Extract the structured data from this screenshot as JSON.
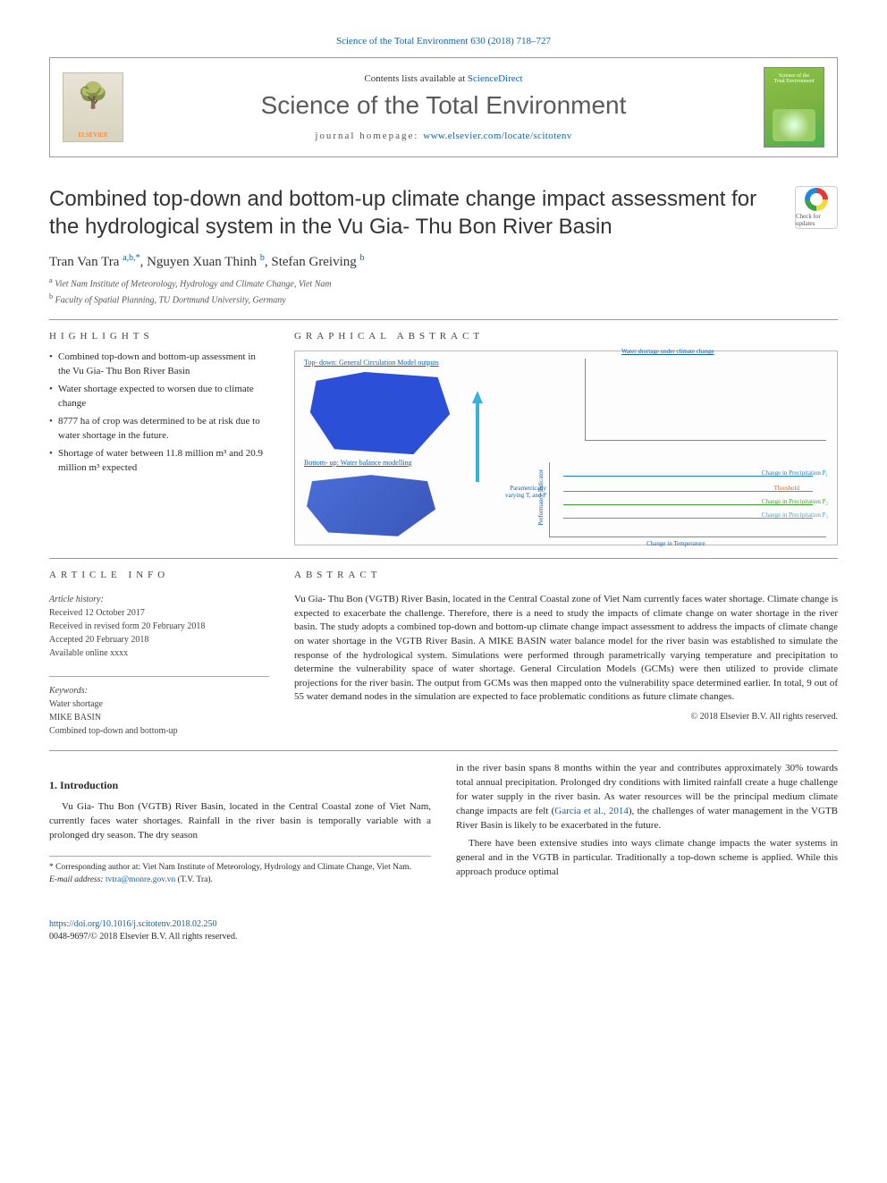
{
  "header": {
    "citation_line": "Science of the Total Environment 630 (2018) 718–727",
    "contents_prefix": "Contents lists available at ",
    "contents_link": "ScienceDirect",
    "journal_name": "Science of the Total Environment",
    "homepage_prefix": "journal homepage: ",
    "homepage_url": "www.elsevier.com/locate/scitotenv",
    "publisher_logo_label": "ELSEVIER",
    "cover_label_top": "Science of the",
    "cover_label_bottom": "Total Environment"
  },
  "article": {
    "title": "Combined top-down and bottom-up climate change impact assessment for the hydrological system in the Vu Gia- Thu Bon River Basin",
    "crossmark_label": "Check for updates",
    "authors_html": "Tran Van Tra <sup>a,b,*</sup>, Nguyen Xuan Thinh <sup>b</sup>, Stefan Greiving <sup>b</sup>",
    "affiliations": {
      "a": "a Viet Nam Institute of Meteorology, Hydrology and Climate Change, Viet Nam",
      "b": "b Faculty of Spatial Planning, TU Dortmund University, Germany"
    }
  },
  "highlights": {
    "header": "HIGHLIGHTS",
    "items": [
      "Combined top-down and bottom-up assessment in the Vu Gia- Thu Bon River Basin",
      "Water shortage expected to worsen due to climate change",
      "8777 ha of crop was determined to be at risk due to water shortage in the future.",
      "Shortage of water between 11.8 million m³ and 20.9 million m³ expected"
    ]
  },
  "graphical_abstract": {
    "header": "GRAPHICAL ABSTRACT",
    "top_down_label": "Top- down: General Circulation Model outputs",
    "right_top_label": "Water shortage under climate change",
    "bottom_up_label": "Bottom- up: Water balance modelling",
    "chart_labels": {
      "y_axis": "Performance Indicator",
      "x_axis": "Change in Temperature",
      "param_label": "Parametrically varying T, and P",
      "p1": "Change in Precipitation P₁",
      "threshold": "Threshold",
      "p2": "Change in Precipitation P₂",
      "p3": "Change in Precipitation P₃"
    },
    "line_colors": {
      "p1": "#1b7fc2",
      "threshold": "#d66a1f",
      "p2": "#3c9f2e",
      "p3": "#3da8c8"
    }
  },
  "article_info": {
    "header": "ARTICLE INFO",
    "history_label": "Article history:",
    "received": "Received 12 October 2017",
    "revised": "Received in revised form 20 February 2018",
    "accepted": "Accepted 20 February 2018",
    "online": "Available online xxxx",
    "keywords_label": "Keywords:",
    "keywords": [
      "Water shortage",
      "MIKE BASIN",
      "Combined top-down and bottom-up"
    ]
  },
  "abstract": {
    "header": "ABSTRACT",
    "text": "Vu Gia- Thu Bon (VGTB) River Basin, located in the Central Coastal zone of Viet Nam currently faces water shortage. Climate change is expected to exacerbate the challenge. Therefore, there is a need to study the impacts of climate change on water shortage in the river basin. The study adopts a combined top-down and bottom-up climate change impact assessment to address the impacts of climate change on water shortage in the VGTB River Basin. A MIKE BASIN water balance model for the river basin was established to simulate the response of the hydrological system. Simulations were performed through parametrically varying temperature and precipitation to determine the vulnerability space of water shortage. General Circulation Models (GCMs) were then utilized to provide climate projections for the river basin. The output from GCMs was then mapped onto the vulnerability space determined earlier. In total, 9 out of 55 water demand nodes in the simulation are expected to face problematic conditions as future climate changes.",
    "copyright": "© 2018 Elsevier B.V. All rights reserved."
  },
  "introduction": {
    "heading": "1. Introduction",
    "col1": "Vu Gia- Thu Bon (VGTB) River Basin, located in the Central Coastal zone of Viet Nam, currently faces water shortages. Rainfall in the river basin is temporally variable with a prolonged dry season. The dry season",
    "col2_p1": "in the river basin spans 8 months within the year and contributes approximately 30% towards total annual precipitation. Prolonged dry conditions with limited rainfall create a huge challenge for water supply in the river basin. As water resources will be the principal medium climate change impacts are felt (",
    "col2_ref": "García et al., 2014",
    "col2_p1b": "), the challenges of water management in the VGTB River Basin is likely to be exacerbated in the future.",
    "col2_p2": "There have been extensive studies into ways climate change impacts the water systems in general and in the VGTB in particular. Traditionally a top-down scheme is applied. While this approach produce optimal"
  },
  "corresponding": {
    "star": "* Corresponding author at: Viet Nam Institute of Meteorology, Hydrology and Climate Change, Viet Nam.",
    "email_label": "E-mail address: ",
    "email": "tvtra@monre.gov.vn",
    "email_suffix": " (T.V. Tra)."
  },
  "footer": {
    "doi": "https://doi.org/10.1016/j.scitotenv.2018.02.250",
    "issn_line": "0048-9697/© 2018 Elsevier B.V. All rights reserved."
  }
}
